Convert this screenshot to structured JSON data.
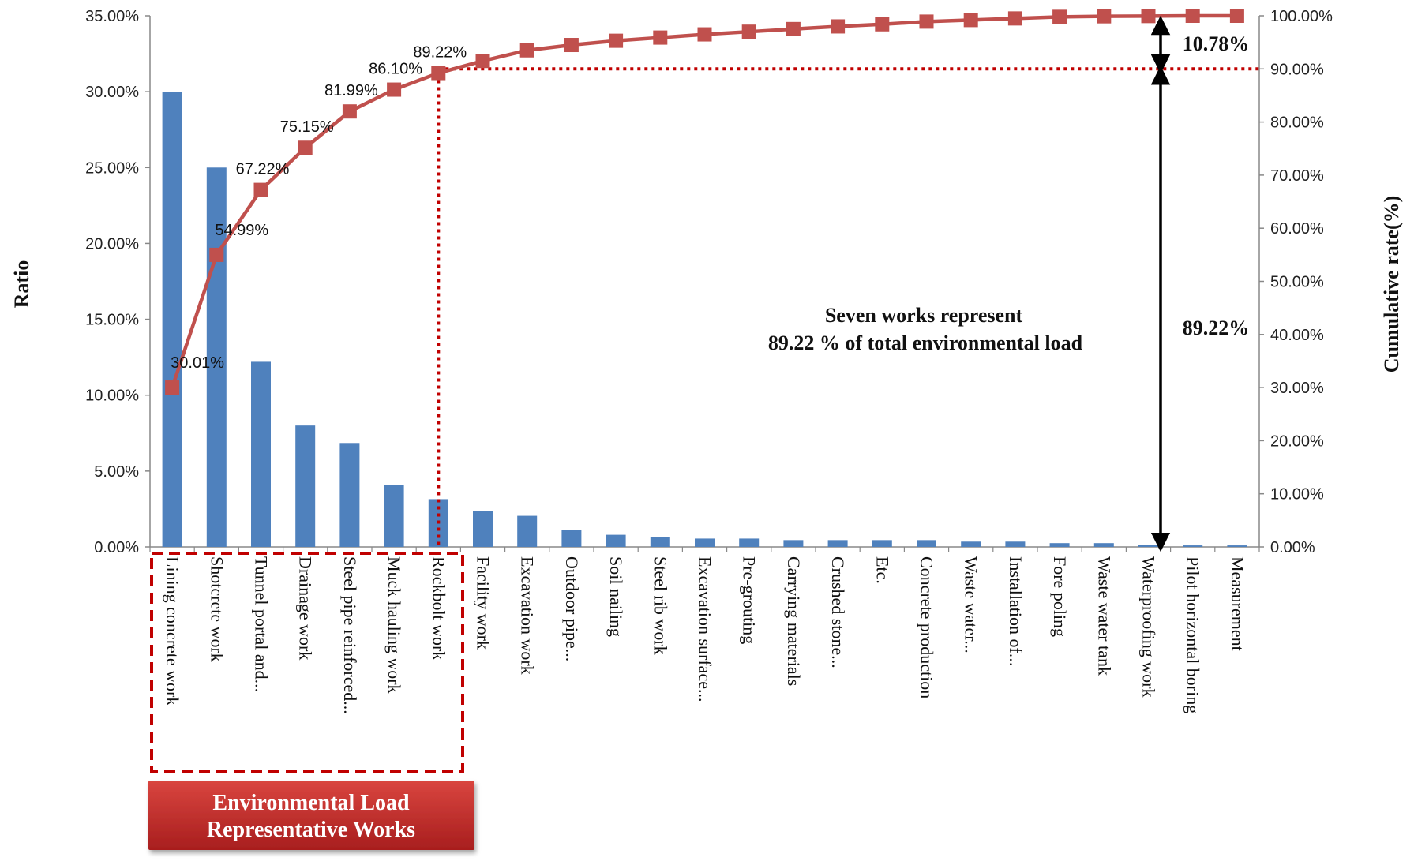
{
  "chart_data": {
    "type": "bar+line",
    "categories": [
      "Lining concrete work",
      "Shotcrete work",
      "Tunnel portal and...",
      "Drainage work",
      "Steel pipe reinforced...",
      "Muck hauling work",
      "Rockbolt work",
      "Facility work",
      "Excavation work",
      "Outdoor pipe...",
      "Soil nailing",
      "Steel rib work",
      "Excavation surface...",
      "Pre-grouting",
      "Carrying materials",
      "Crushed stone...",
      "Etc.",
      "Concrete production",
      "Waste water...",
      "Installation of...",
      "Fore poling",
      "Waste water tank",
      "Waterproofing work",
      "Pilot horizontal boring",
      "Measurement"
    ],
    "series": [
      {
        "axis": "left",
        "kind": "bar",
        "values": [
          30.0,
          25.0,
          12.2,
          8.0,
          6.85,
          4.1,
          3.15,
          2.35,
          2.05,
          1.1,
          0.8,
          0.65,
          0.55,
          0.55,
          0.45,
          0.45,
          0.45,
          0.45,
          0.35,
          0.35,
          0.25,
          0.25,
          0.12,
          0.1,
          0.1
        ]
      },
      {
        "axis": "right",
        "kind": "line",
        "values": [
          30.01,
          54.99,
          67.22,
          75.15,
          81.99,
          86.1,
          89.22,
          91.5,
          93.5,
          94.5,
          95.3,
          95.9,
          96.5,
          97.0,
          97.5,
          98.0,
          98.4,
          98.9,
          99.2,
          99.5,
          99.8,
          99.9,
          99.95,
          100.0,
          100.0
        ]
      }
    ],
    "data_labels": [
      "30.01%",
      "54.99%",
      "67.22%",
      "75.15%",
      "81.99%",
      "86.10%",
      "89.22%"
    ],
    "left_ticks": [
      "0.00%",
      "5.00%",
      "10.00%",
      "15.00%",
      "20.00%",
      "25.00%",
      "30.00%",
      "35.00%"
    ],
    "right_ticks": [
      "0.00%",
      "10.00%",
      "20.00%",
      "30.00%",
      "40.00%",
      "50.00%",
      "60.00%",
      "70.00%",
      "80.00%",
      "90.00%",
      "100.00%"
    ],
    "ylim_left": [
      0,
      35
    ],
    "ylim_right": [
      0,
      100
    ],
    "ylabel": "Ratio",
    "y2label": "Cumulative rate(%)",
    "threshold": 90,
    "highlight_count": 7,
    "annotation": [
      "Seven works represent",
      "89.22 % of total environmental load"
    ],
    "arrow_labels": {
      "upper": "10.78%",
      "lower": "89.22%"
    },
    "group_label": [
      "Environmental Load",
      "Representative Works"
    ],
    "colors": {
      "bar": "#4F81BD",
      "line": "#C0504D",
      "marker": "#C0504D",
      "highlight": "#C00000",
      "box": "#C0302B"
    }
  }
}
